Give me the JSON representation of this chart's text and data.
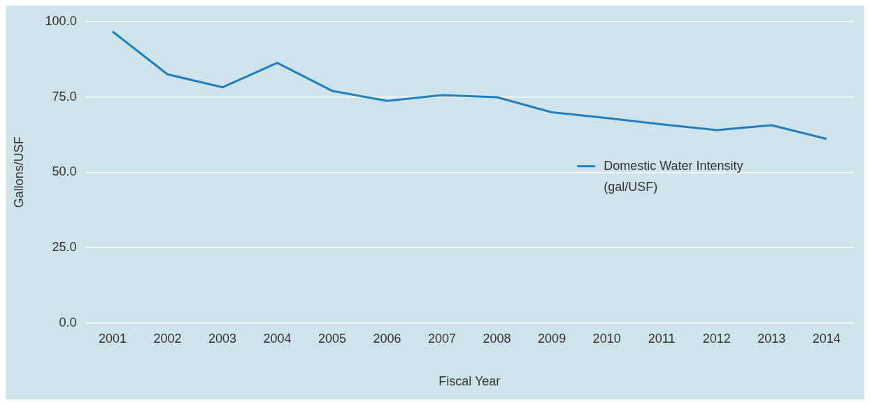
{
  "chart_data": {
    "type": "line",
    "xlabel": "Fiscal Year",
    "ylabel": "Gallons/USF",
    "categories": [
      "2001",
      "2002",
      "2003",
      "2004",
      "2005",
      "2006",
      "2007",
      "2008",
      "2009",
      "2010",
      "2011",
      "2012",
      "2013",
      "2014"
    ],
    "series": [
      {
        "name": "Domestic Water Intensity (gal/USF)",
        "color": "#1f7fc1",
        "values": [
          96.7,
          82.5,
          78.2,
          86.3,
          77.0,
          73.7,
          75.6,
          74.9,
          69.9,
          68.0,
          65.9,
          64.0,
          65.6,
          61.1
        ]
      }
    ],
    "ylim": [
      0,
      100
    ],
    "yticks": [
      {
        "value": 0,
        "label": "0.0"
      },
      {
        "value": 25,
        "label": "25.0"
      },
      {
        "value": 50,
        "label": "50.0"
      },
      {
        "value": 75,
        "label": "75.0"
      },
      {
        "value": 100,
        "label": "100.0"
      }
    ],
    "grid": "y",
    "legend": "right",
    "marker": "none",
    "line_style": "solid"
  }
}
